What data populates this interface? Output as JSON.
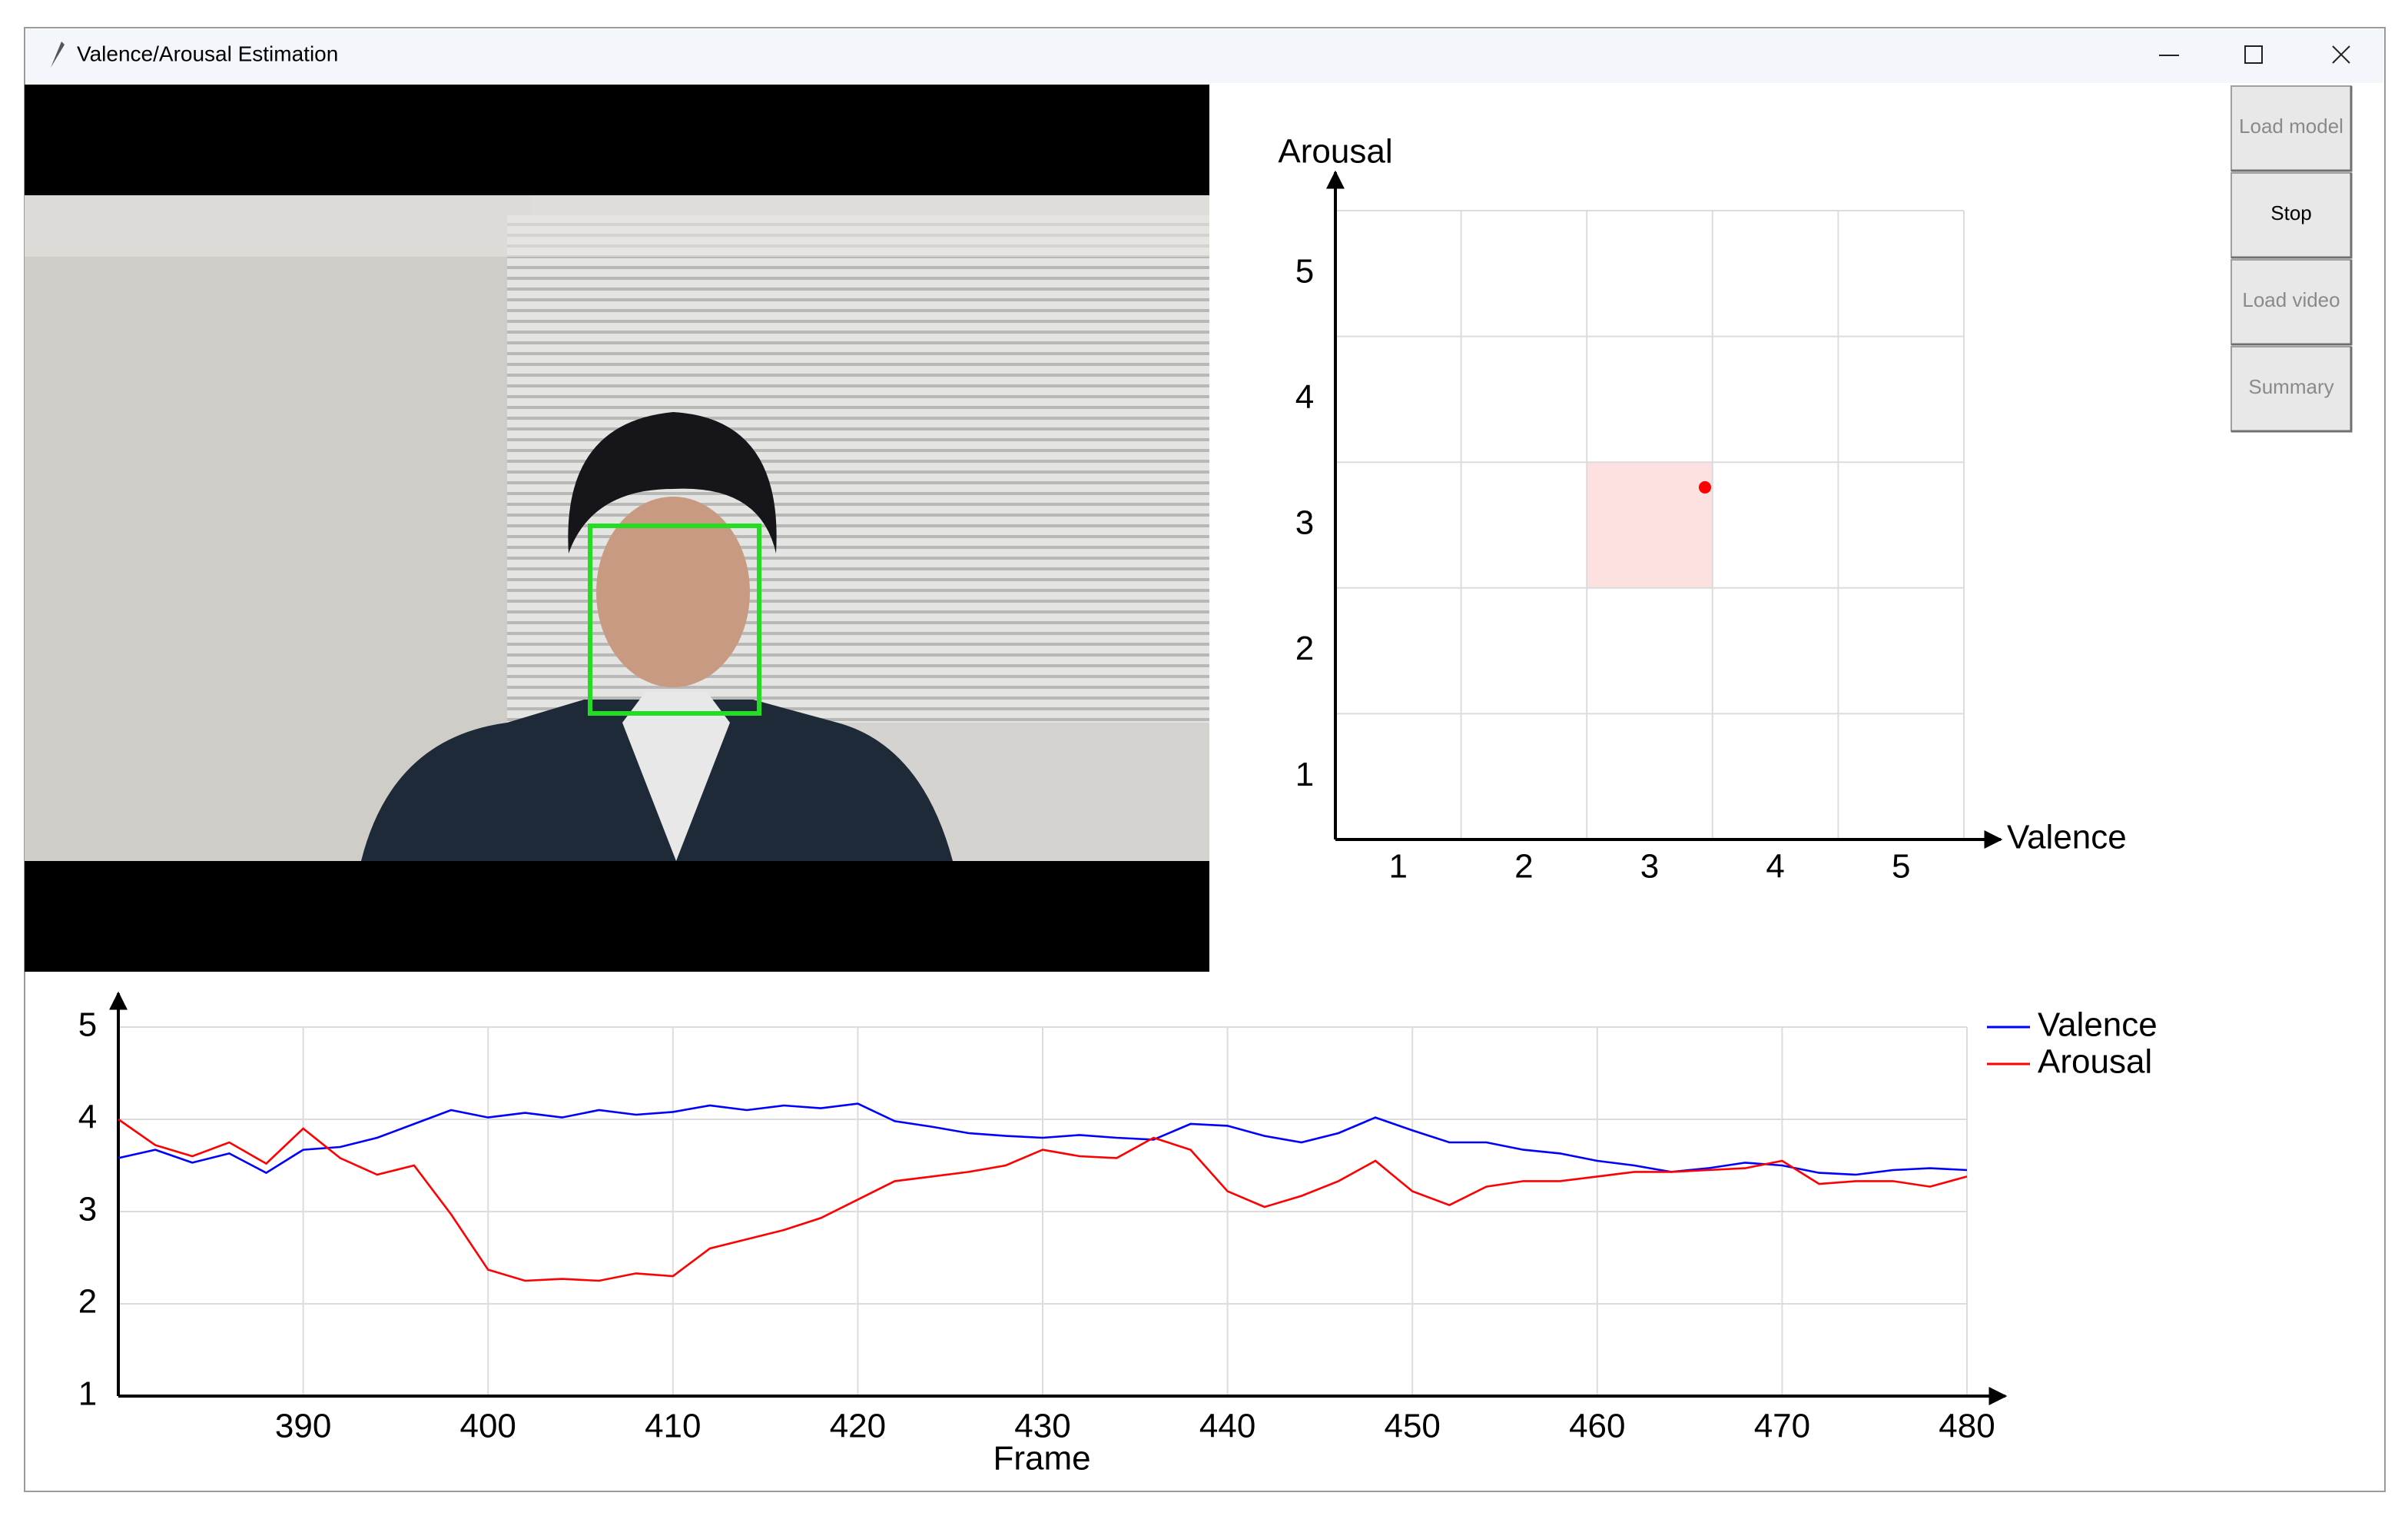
{
  "window": {
    "title": "Valence/Arousal Estimation"
  },
  "buttons": [
    "Load model",
    "Stop",
    "Load video",
    "Summary"
  ],
  "va_plot": {
    "type": "scatter",
    "x_label": "Valence",
    "y_label": "Arousal",
    "xlim": [
      0.5,
      5.5
    ],
    "ylim": [
      0.5,
      5.5
    ],
    "xticks": [
      1,
      2,
      3,
      4,
      5
    ],
    "yticks": [
      1,
      2,
      3,
      4,
      5
    ],
    "grid": true,
    "highlight_cell": {
      "x": 3,
      "y": 3
    },
    "highlight_color": "#fde0e0",
    "point": {
      "x": 3.44,
      "y": 3.3
    },
    "color": "#ff0000"
  },
  "timeline": {
    "type": "line",
    "x_label": "Frame",
    "x": [
      380,
      382,
      384,
      386,
      388,
      390,
      392,
      394,
      396,
      398,
      400,
      402,
      404,
      406,
      408,
      410,
      412,
      414,
      416,
      418,
      420,
      422,
      424,
      426,
      428,
      430,
      432,
      434,
      436,
      438,
      440,
      442,
      444,
      446,
      448,
      450,
      452,
      454,
      456,
      458,
      460,
      462,
      464,
      466,
      468,
      470,
      472,
      474,
      476,
      478,
      480
    ],
    "xlim": [
      380,
      480
    ],
    "ylim": [
      1,
      5
    ],
    "xticks": [
      390,
      400,
      410,
      420,
      430,
      440,
      450,
      460,
      470,
      480
    ],
    "yticks": [
      1,
      2,
      3,
      4,
      5
    ],
    "grid": true,
    "legend": "right",
    "series": [
      {
        "name": "Valence",
        "color": "#0000ff",
        "values": [
          3.58,
          3.67,
          3.53,
          3.63,
          3.42,
          3.67,
          3.7,
          3.8,
          3.95,
          4.1,
          4.02,
          4.07,
          4.02,
          4.1,
          4.05,
          4.08,
          4.15,
          4.1,
          4.15,
          4.12,
          4.17,
          3.98,
          3.92,
          3.85,
          3.82,
          3.8,
          3.83,
          3.8,
          3.78,
          3.95,
          3.93,
          3.82,
          3.75,
          3.85,
          4.02,
          3.88,
          3.75,
          3.75,
          3.67,
          3.63,
          3.55,
          3.5,
          3.43,
          3.47,
          3.53,
          3.5,
          3.42,
          3.4,
          3.45,
          3.47,
          3.45
        ]
      },
      {
        "name": "Arousal",
        "color": "#ff0000",
        "values": [
          4.0,
          3.72,
          3.6,
          3.75,
          3.52,
          3.9,
          3.58,
          3.4,
          3.5,
          2.97,
          2.37,
          2.25,
          2.27,
          2.25,
          2.33,
          2.3,
          2.6,
          2.7,
          2.8,
          2.93,
          3.13,
          3.33,
          3.38,
          3.43,
          3.5,
          3.67,
          3.6,
          3.58,
          3.8,
          3.67,
          3.22,
          3.05,
          3.17,
          3.33,
          3.55,
          3.22,
          3.07,
          3.27,
          3.33,
          3.33,
          3.38,
          3.43,
          3.43,
          3.45,
          3.47,
          3.55,
          3.3,
          3.33,
          3.33,
          3.27,
          3.38
        ]
      }
    ]
  }
}
